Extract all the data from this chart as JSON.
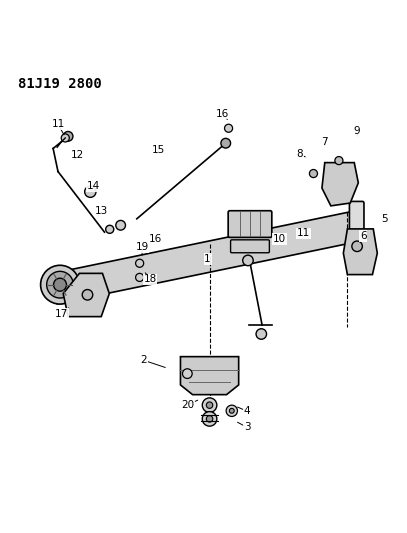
{
  "title": "81J19 2800",
  "background_color": "#ffffff",
  "line_color": "#000000"
}
